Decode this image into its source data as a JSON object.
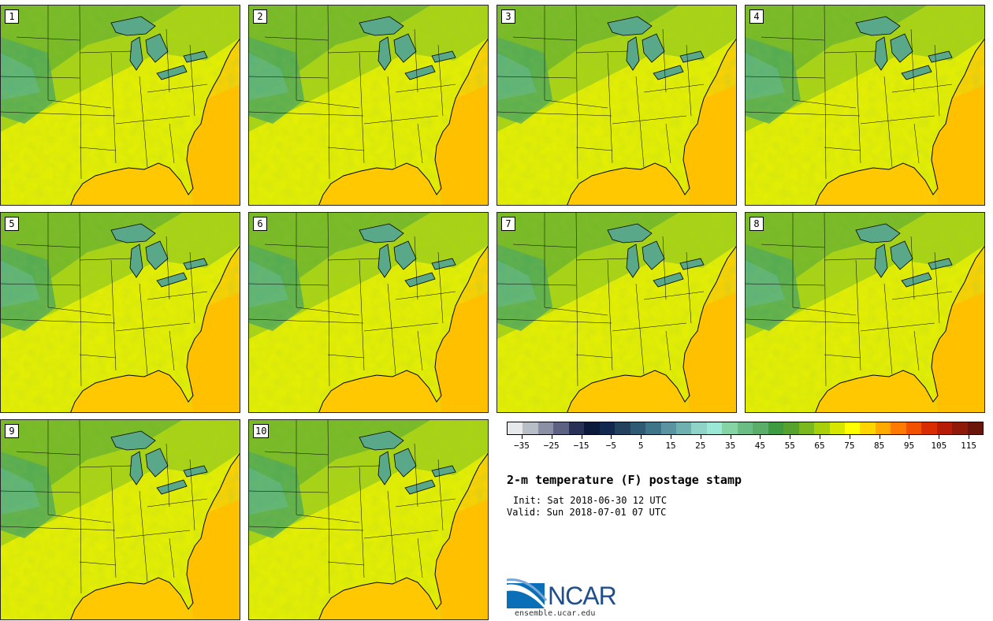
{
  "panels": [
    {
      "label": "1"
    },
    {
      "label": "2"
    },
    {
      "label": "3"
    },
    {
      "label": "4"
    },
    {
      "label": "5"
    },
    {
      "label": "6"
    },
    {
      "label": "7"
    },
    {
      "label": "8"
    },
    {
      "label": "9"
    },
    {
      "label": "10"
    }
  ],
  "colorbar": {
    "colors": [
      "#e6e8ea",
      "#b9bdc6",
      "#8b90a4",
      "#5d6280",
      "#2a3156",
      "#0b1a3b",
      "#13284e",
      "#23425e",
      "#2f5a73",
      "#3f7589",
      "#5b93a0",
      "#6fb0b0",
      "#8fd3c8",
      "#9ce8d6",
      "#86d3a6",
      "#6bbd85",
      "#5aae6a",
      "#3f9b3f",
      "#55a32e",
      "#7bb81d",
      "#a7cf0a",
      "#d7e600",
      "#ffff00",
      "#ffd500",
      "#ffaa00",
      "#ff7b00",
      "#f25200",
      "#d92c00",
      "#b71c06",
      "#8f1a0a",
      "#6a140a"
    ],
    "tick_labels": [
      "−35",
      "−25",
      "−15",
      "−5",
      "5",
      "15",
      "25",
      "35",
      "45",
      "55",
      "65",
      "75",
      "85",
      "95",
      "105",
      "115"
    ],
    "range": [
      -40,
      120
    ]
  },
  "title": "2-m temperature (F) postage stamp",
  "init": "Init: Sat 2018-06-30 12 UTC",
  "valid": "Valid: Sun 2018-07-01 07 UTC",
  "logo": {
    "text": "NCAR",
    "url": "ensemble.ucar.edu"
  }
}
